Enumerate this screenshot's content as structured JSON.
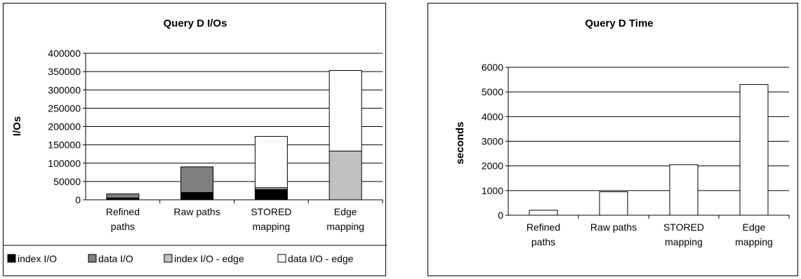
{
  "chart_data": [
    {
      "type": "bar",
      "stacked": true,
      "title": "Query D I/Os",
      "xlabel": "",
      "ylabel": "I/Os",
      "ylim": [
        0,
        400000
      ],
      "yticks": [
        "0",
        "50000",
        "100000",
        "150000",
        "200000",
        "250000",
        "300000",
        "350000",
        "400000"
      ],
      "categories": [
        [
          "Refined",
          "paths"
        ],
        [
          "Raw paths"
        ],
        [
          "STORED",
          "mapping"
        ],
        [
          "Edge",
          "mapping"
        ]
      ],
      "grid": true,
      "legend_position": "bottom",
      "series": [
        {
          "name": "index I/O",
          "color": "#000000",
          "values": [
            5000,
            20000,
            28000,
            0
          ]
        },
        {
          "name": "data I/O",
          "color": "#808080",
          "values": [
            11000,
            70000,
            0,
            0
          ]
        },
        {
          "name": "index I/O - edge",
          "color": "#c0c0c0",
          "values": [
            0,
            0,
            5000,
            133000
          ]
        },
        {
          "name": "data I/O - edge",
          "color": "#ffffff",
          "values": [
            0,
            0,
            140000,
            220000
          ]
        }
      ]
    },
    {
      "type": "bar",
      "title": "Query D Time",
      "xlabel": "",
      "ylabel": "seconds",
      "ylim": [
        0,
        6000
      ],
      "yticks": [
        "0",
        "1000",
        "2000",
        "3000",
        "4000",
        "5000",
        "6000"
      ],
      "categories": [
        [
          "Refined",
          "paths"
        ],
        [
          "Raw paths"
        ],
        [
          "STORED",
          "mapping"
        ],
        [
          "Edge",
          "mapping"
        ]
      ],
      "grid": true,
      "series": [
        {
          "color": "#ffffff",
          "values": [
            200,
            950,
            2050,
            5300
          ]
        }
      ]
    }
  ]
}
